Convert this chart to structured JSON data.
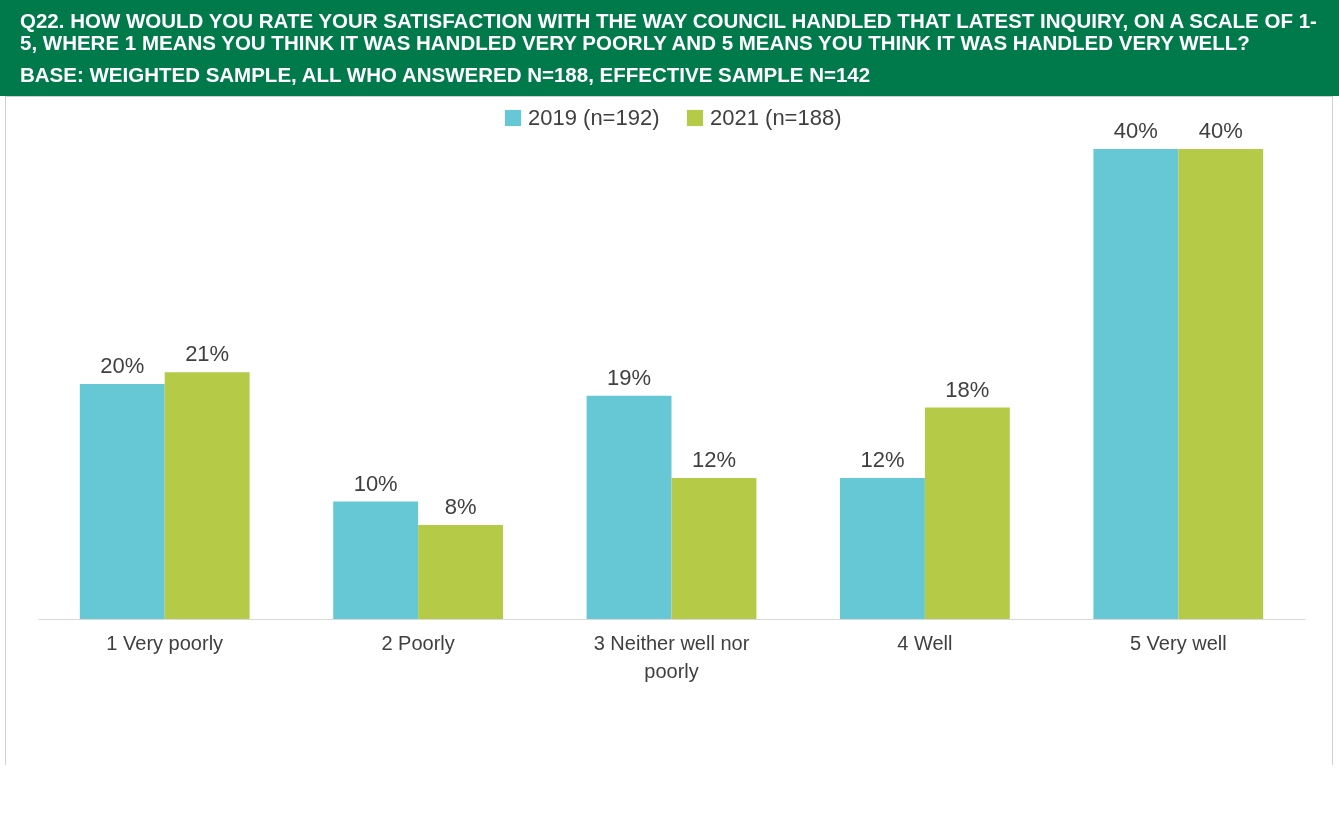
{
  "chart_data": {
    "type": "bar",
    "title": "Q22. HOW WOULD YOU RATE YOUR SATISFACTION WITH THE WAY COUNCIL HANDLED THAT LATEST INQUIRY, ON A SCALE OF 1-5, WHERE 1 MEANS YOU THINK IT WAS HANDLED VERY POORLY AND 5 MEANS YOU THINK IT WAS HANDLED VERY WELL?",
    "subtitle": "BASE: WEIGHTED SAMPLE, ALL WHO ANSWERED N=188, EFFECTIVE SAMPLE N=142",
    "categories": [
      "1 Very poorly",
      "2 Poorly",
      "3 Neither well nor poorly",
      "4 Well",
      "5 Very well"
    ],
    "series": [
      {
        "name": "2019 (n=192)",
        "color": "#67c8d5",
        "values": [
          20,
          10,
          19,
          12,
          40
        ],
        "value_labels": [
          "20%",
          "10%",
          "19%",
          "12%",
          "40%"
        ]
      },
      {
        "name": "2021 (n=188)",
        "color": "#b5cb48",
        "values": [
          21,
          8,
          12,
          18,
          40
        ],
        "value_labels": [
          "21%",
          "8%",
          "12%",
          "18%",
          "40%"
        ]
      }
    ],
    "legend": "top"
  }
}
